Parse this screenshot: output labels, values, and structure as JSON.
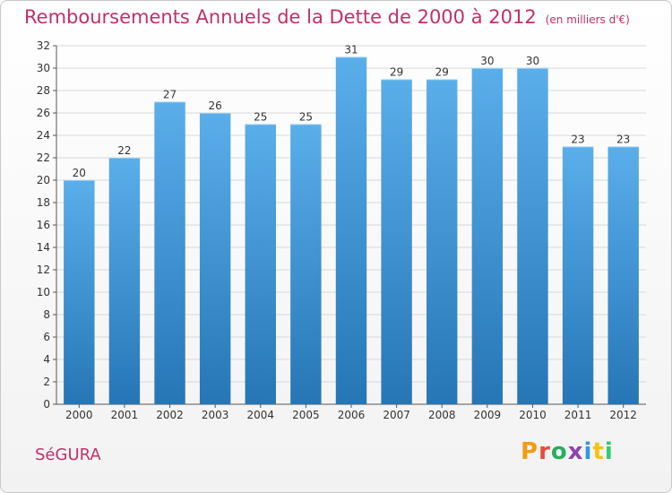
{
  "title": "Remboursements Annuels de la Dette de 2000 à 2012",
  "unit_note": "(en milliers d'€)",
  "city": "SéGURA",
  "brand": "Proxiti",
  "colors": {
    "title": "#c0306a",
    "bar_top": "#5aaeea",
    "bar_bottom": "#2676b6",
    "grid": "#d8d8d8"
  },
  "chart_data": {
    "type": "bar",
    "title": "Remboursements Annuels de la Dette de 2000 à 2012",
    "xlabel": "",
    "ylabel": "",
    "ylim": [
      0,
      32
    ],
    "yticks": [
      0,
      2,
      4,
      6,
      8,
      10,
      12,
      14,
      16,
      18,
      20,
      22,
      24,
      26,
      28,
      30,
      32
    ],
    "grid": true,
    "categories": [
      "2000",
      "2001",
      "2002",
      "2003",
      "2004",
      "2005",
      "2006",
      "2007",
      "2008",
      "2009",
      "2010",
      "2011",
      "2012"
    ],
    "values": [
      20,
      22,
      27,
      26,
      25,
      25,
      31,
      29,
      29,
      30,
      30,
      23,
      23
    ]
  }
}
